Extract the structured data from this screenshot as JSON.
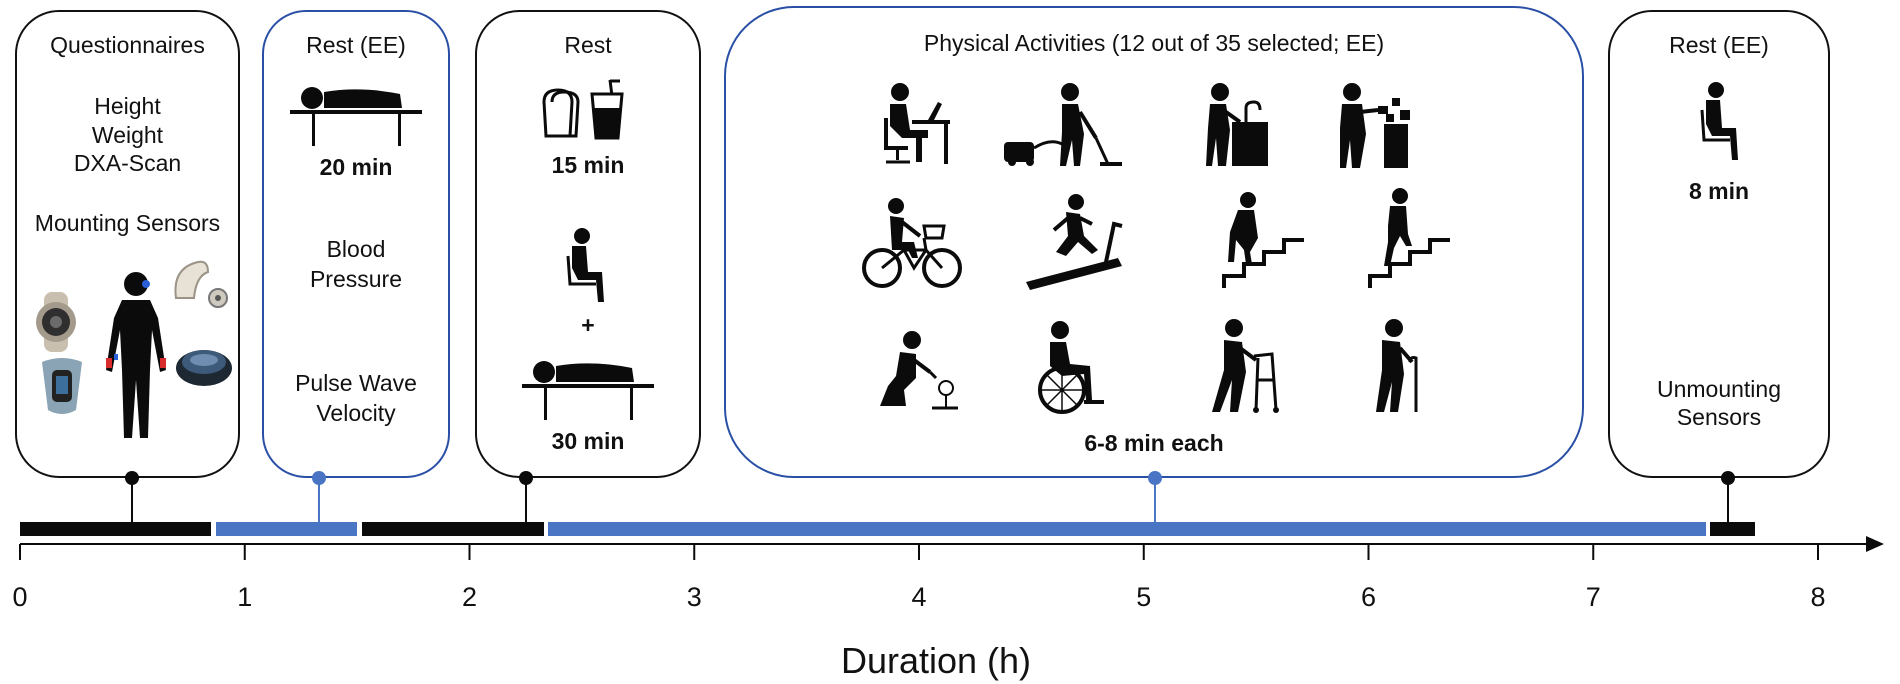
{
  "boxes": {
    "b1": {
      "title": "Questionnaires",
      "line1": "Height",
      "line2": "Weight",
      "line3": "DXA-Scan",
      "line4": "Mounting Sensors"
    },
    "b2": {
      "title": "Rest (EE)",
      "duration": "20 min",
      "line1": "Blood",
      "line2": "Pressure",
      "line3": "Pulse Wave",
      "line4": "Velocity"
    },
    "b3": {
      "title": "Rest",
      "duration1": "15 min",
      "plus": "+",
      "duration2": "30 min"
    },
    "b4": {
      "title": "Physical Activities (12 out of 35 selected; EE)",
      "duration": "6-8 min each"
    },
    "b5": {
      "title": "Rest (EE)",
      "duration": "8 min",
      "line1": "Unmounting",
      "line2": "Sensors"
    }
  },
  "icons": [
    "smartwatch-icon",
    "fitness-band-icon",
    "body-silhouette-icon",
    "hearing-device-icon",
    "chest-sensor-icon",
    "lying-person-icon",
    "bread-icon",
    "drink-icon",
    "sitting-person-icon",
    "desk-computer-icon",
    "vacuuming-icon",
    "washing-dishes-icon",
    "standing-work-icon",
    "cycling-icon",
    "treadmill-icon",
    "stairs-down-icon",
    "stairs-up-icon",
    "gardening-icon",
    "wheelchair-icon",
    "walker-icon",
    "cane-walking-icon"
  ],
  "colors": {
    "black": "#0b0b0b",
    "blue": "#4a74c4",
    "blue_border": "#2a50a6"
  },
  "chart_data": {
    "type": "timeline",
    "xlabel": "Duration (h)",
    "xlim": [
      0,
      8
    ],
    "ticks": [
      "0",
      "1",
      "2",
      "3",
      "4",
      "5",
      "6",
      "7",
      "8"
    ],
    "segments": [
      {
        "start": 0.0,
        "end": 0.85,
        "color": "black"
      },
      {
        "start": 0.87,
        "end": 1.5,
        "color": "blue"
      },
      {
        "start": 1.52,
        "end": 2.33,
        "color": "black"
      },
      {
        "start": 2.35,
        "end": 7.5,
        "color": "blue"
      },
      {
        "start": 7.52,
        "end": 7.72,
        "color": "black"
      }
    ],
    "markers": [
      {
        "x": 0.5,
        "color": "black"
      },
      {
        "x": 1.33,
        "color": "blue"
      },
      {
        "x": 2.25,
        "color": "black"
      },
      {
        "x": 5.05,
        "color": "blue"
      },
      {
        "x": 7.6,
        "color": "black"
      }
    ]
  }
}
